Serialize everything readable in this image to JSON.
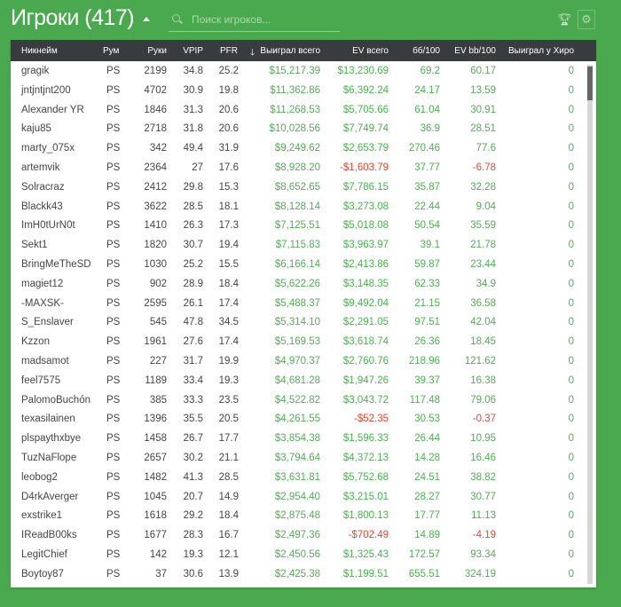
{
  "header": {
    "title": "Игроки (417)",
    "search_placeholder": "Поиск игроков...",
    "trophy_icon": "trophy-icon",
    "gear_icon": "gear-icon"
  },
  "colors": {
    "background": "#4aa84e",
    "positive": "#4caf50",
    "negative": "#e5472f",
    "table_header": "#383c3f"
  },
  "table": {
    "columns": [
      "Никнейм",
      "Рум",
      "Руки",
      "VPIP",
      "PFR",
      "Выиграл всего",
      "EV всего",
      "бб/100",
      "EV bb/100",
      "Выиграл у Хиро"
    ],
    "sort_column": "Выиграл всего",
    "sort_direction": "desc",
    "rows": [
      [
        "gragik",
        "PS",
        "2199",
        "34.8",
        "25.2",
        "$15,217.39",
        "$13,230.69",
        "69.2",
        "60.17",
        "0"
      ],
      [
        "jntjntjnt200",
        "PS",
        "4702",
        "30.9",
        "19.8",
        "$11,362.86",
        "$6,392.24",
        "24.17",
        "13.59",
        "0"
      ],
      [
        "Alexander YR",
        "PS",
        "1846",
        "31.3",
        "20.6",
        "$11,268.53",
        "$5,705.66",
        "61.04",
        "30.91",
        "0"
      ],
      [
        "kaju85",
        "PS",
        "2718",
        "31.8",
        "20.6",
        "$10,028.56",
        "$7,749.74",
        "36.9",
        "28.51",
        "0"
      ],
      [
        "marty_075x",
        "PS",
        "342",
        "49.4",
        "31.9",
        "$9,249.62",
        "$2,653.79",
        "270.46",
        "77.6",
        "0"
      ],
      [
        "artemvik",
        "PS",
        "2364",
        "27",
        "17.6",
        "$8,928.20",
        "-$1,603.79",
        "37.77",
        "-6.78",
        "0"
      ],
      [
        "Solracraz",
        "PS",
        "2412",
        "29.8",
        "15.3",
        "$8,652.65",
        "$7,786.15",
        "35.87",
        "32.28",
        "0"
      ],
      [
        "Blackk43",
        "PS",
        "3622",
        "28.5",
        "18.1",
        "$8,128.14",
        "$3,273.08",
        "22.44",
        "9.04",
        "0"
      ],
      [
        "ImH0tUrN0t",
        "PS",
        "1410",
        "26.3",
        "17.3",
        "$7,125.51",
        "$5,018.08",
        "50.54",
        "35.59",
        "0"
      ],
      [
        "Sekt1",
        "PS",
        "1820",
        "30.7",
        "19.4",
        "$7,115.83",
        "$3,963.97",
        "39.1",
        "21.78",
        "0"
      ],
      [
        "BringMeTheSD",
        "PS",
        "1030",
        "25.2",
        "15.5",
        "$6,166.14",
        "$2,413.86",
        "59.87",
        "23.44",
        "0"
      ],
      [
        "magiet12",
        "PS",
        "902",
        "28.9",
        "18.4",
        "$5,622.26",
        "$3,148.35",
        "62.33",
        "34.9",
        "0"
      ],
      [
        "-MAXSK-",
        "PS",
        "2595",
        "26.1",
        "17.4",
        "$5,488.37",
        "$9,492.04",
        "21.15",
        "36.58",
        "0"
      ],
      [
        "S_Enslaver",
        "PS",
        "545",
        "47.8",
        "34.5",
        "$5,314.10",
        "$2,291.05",
        "97.51",
        "42.04",
        "0"
      ],
      [
        "Kzzon",
        "PS",
        "1961",
        "27.6",
        "17.4",
        "$5,169.53",
        "$3,618.74",
        "26.36",
        "18.45",
        "0"
      ],
      [
        "madsamot",
        "PS",
        "227",
        "31.7",
        "19.9",
        "$4,970.37",
        "$2,760.76",
        "218.96",
        "121.62",
        "0"
      ],
      [
        "feel7575",
        "PS",
        "1189",
        "33.4",
        "19.3",
        "$4,681.28",
        "$1,947.26",
        "39.37",
        "16.38",
        "0"
      ],
      [
        "PalomoBuchón",
        "PS",
        "385",
        "33.3",
        "23.5",
        "$4,522.82",
        "$3,043.72",
        "117.48",
        "79.06",
        "0"
      ],
      [
        "texasilainen",
        "PS",
        "1396",
        "35.5",
        "20.5",
        "$4,261.55",
        "-$52.35",
        "30.53",
        "-0.37",
        "0"
      ],
      [
        "plspaythxbye",
        "PS",
        "1458",
        "26.7",
        "17.7",
        "$3,854.38",
        "$1,596.33",
        "26.44",
        "10.95",
        "0"
      ],
      [
        "TuzNaFlope",
        "PS",
        "2657",
        "30.2",
        "21.1",
        "$3,794.64",
        "$4,372.13",
        "14.28",
        "16.46",
        "0"
      ],
      [
        "leobog2",
        "PS",
        "1482",
        "41.3",
        "28.5",
        "$3,631.81",
        "$5,752.68",
        "24.51",
        "38.82",
        "0"
      ],
      [
        "D4rkAverger",
        "PS",
        "1045",
        "20.7",
        "14.9",
        "$2,954.40",
        "$3,215.01",
        "28.27",
        "30.77",
        "0"
      ],
      [
        "exstrike1",
        "PS",
        "1618",
        "29.2",
        "18.4",
        "$2,875.48",
        "$1,800.13",
        "17.77",
        "11.13",
        "0"
      ],
      [
        "IReadB00ks",
        "PS",
        "1677",
        "28.3",
        "16.7",
        "$2,497.36",
        "-$702.49",
        "14.89",
        "-4.19",
        "0"
      ],
      [
        "LegitChief",
        "PS",
        "142",
        "19.3",
        "12.1",
        "$2,450.56",
        "$1,325.43",
        "172.57",
        "93.34",
        "0"
      ],
      [
        "Boytoy87",
        "PS",
        "37",
        "30.6",
        "13.9",
        "$2,425.38",
        "$1,199.51",
        "655.51",
        "324.19",
        "0"
      ]
    ]
  }
}
